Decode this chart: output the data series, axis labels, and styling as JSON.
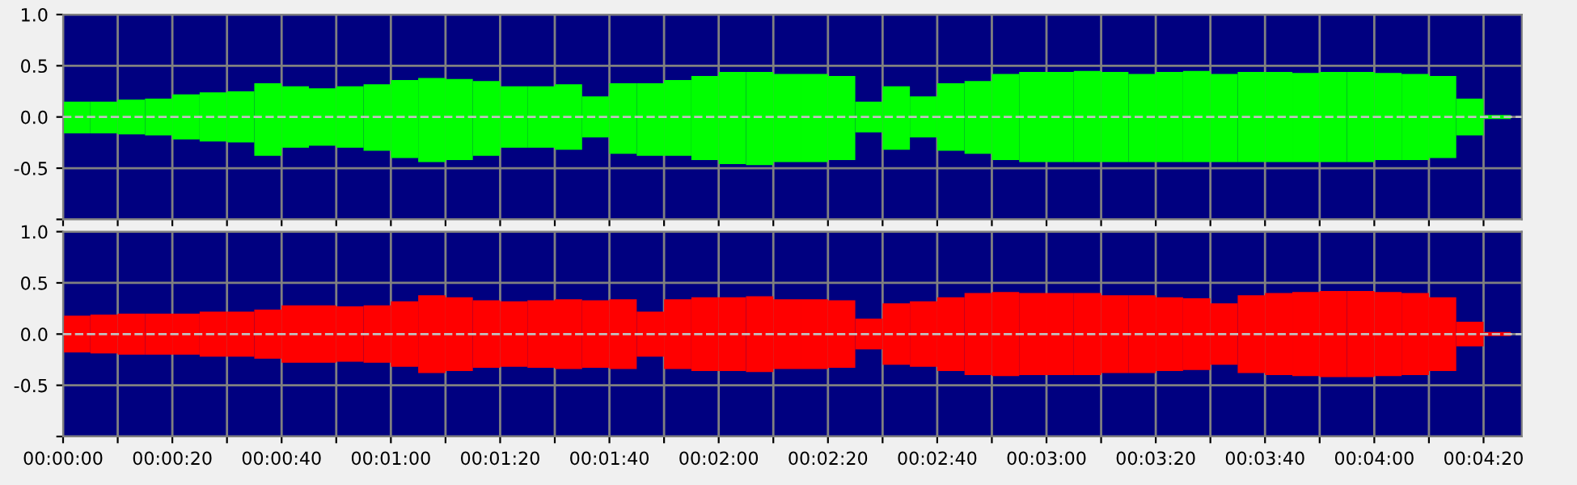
{
  "chart_data": [
    {
      "type": "bar",
      "x": [
        2.5,
        7.5,
        12.5,
        17.5,
        22.5,
        27.5,
        32.5,
        37.5,
        42.5,
        47.5,
        52.5,
        57.5,
        62.5,
        67.5,
        72.5,
        77.5,
        82.5,
        87.5,
        92.5,
        97.5,
        102.5,
        107.5,
        112.5,
        117.5,
        122.5,
        127.5,
        132.5,
        137.5,
        142.5,
        147.5,
        152.5,
        157.5,
        162.5,
        167.5,
        172.5,
        177.5,
        182.5,
        187.5,
        192.5,
        197.5,
        202.5,
        207.5,
        212.5,
        217.5,
        222.5,
        227.5,
        232.5,
        237.5,
        242.5,
        247.5,
        252.5,
        257.5,
        262.5
      ],
      "series": [
        {
          "color": "#00ff00",
          "base": [
            -0.16,
            -0.16,
            -0.17,
            -0.18,
            -0.22,
            -0.24,
            -0.25,
            -0.38,
            -0.3,
            -0.28,
            -0.3,
            -0.33,
            -0.4,
            -0.44,
            -0.42,
            -0.38,
            -0.3,
            -0.3,
            -0.32,
            -0.2,
            -0.36,
            -0.38,
            -0.38,
            -0.42,
            -0.46,
            -0.47,
            -0.44,
            -0.44,
            -0.42,
            -0.15,
            -0.32,
            -0.2,
            -0.33,
            -0.36,
            -0.42,
            -0.44,
            -0.44,
            -0.44,
            -0.44,
            -0.44,
            -0.44,
            -0.44,
            -0.44,
            -0.44,
            -0.44,
            -0.44,
            -0.44,
            -0.44,
            -0.42,
            -0.42,
            -0.4,
            -0.18,
            -0.02
          ],
          "values": [
            0.31,
            0.31,
            0.34,
            0.36,
            0.44,
            0.48,
            0.5,
            0.71,
            0.6,
            0.56,
            0.6,
            0.65,
            0.76,
            0.82,
            0.79,
            0.73,
            0.6,
            0.6,
            0.64,
            0.4,
            0.69,
            0.71,
            0.74,
            0.82,
            0.9,
            0.91,
            0.86,
            0.86,
            0.82,
            0.3,
            0.62,
            0.4,
            0.66,
            0.71,
            0.84,
            0.88,
            0.88,
            0.89,
            0.88,
            0.86,
            0.88,
            0.89,
            0.86,
            0.88,
            0.88,
            0.87,
            0.88,
            0.88,
            0.85,
            0.84,
            0.8,
            0.36,
            0.04
          ]
        }
      ],
      "xlim": [
        0,
        267
      ],
      "xticks": [
        0,
        10,
        20,
        30,
        40,
        50,
        60,
        70,
        80,
        90,
        100,
        110,
        120,
        130,
        140,
        150,
        160,
        170,
        180,
        190,
        200,
        210,
        220,
        230,
        240,
        250,
        260
      ],
      "ylim": [
        -1,
        1
      ],
      "yticks": [
        {
          "value": -1,
          "label": null
        },
        {
          "value": -0.5,
          "label": "-0.5"
        },
        {
          "value": 0,
          "label": "0.0"
        },
        {
          "value": 0.5,
          "label": "0.5"
        },
        {
          "value": 1,
          "label": "1.0"
        }
      ],
      "grid": true,
      "tick_labels": "y",
      "ref_lines": [
        {
          "axis": "y",
          "value": 0,
          "color": "#c0c0c0",
          "line_style": "dashed"
        }
      ]
    },
    {
      "type": "bar",
      "x": [
        2.5,
        7.5,
        12.5,
        17.5,
        22.5,
        27.5,
        32.5,
        37.5,
        42.5,
        47.5,
        52.5,
        57.5,
        62.5,
        67.5,
        72.5,
        77.5,
        82.5,
        87.5,
        92.5,
        97.5,
        102.5,
        107.5,
        112.5,
        117.5,
        122.5,
        127.5,
        132.5,
        137.5,
        142.5,
        147.5,
        152.5,
        157.5,
        162.5,
        167.5,
        172.5,
        177.5,
        182.5,
        187.5,
        192.5,
        197.5,
        202.5,
        207.5,
        212.5,
        217.5,
        222.5,
        227.5,
        232.5,
        237.5,
        242.5,
        247.5,
        252.5,
        257.5,
        262.5
      ],
      "series": [
        {
          "color": "#ff0000",
          "base": [
            -0.18,
            -0.19,
            -0.2,
            -0.2,
            -0.2,
            -0.22,
            -0.22,
            -0.24,
            -0.28,
            -0.28,
            -0.27,
            -0.28,
            -0.32,
            -0.38,
            -0.36,
            -0.33,
            -0.32,
            -0.33,
            -0.34,
            -0.33,
            -0.34,
            -0.22,
            -0.34,
            -0.36,
            -0.36,
            -0.37,
            -0.34,
            -0.34,
            -0.33,
            -0.15,
            -0.3,
            -0.32,
            -0.36,
            -0.4,
            -0.41,
            -0.4,
            -0.4,
            -0.4,
            -0.38,
            -0.38,
            -0.36,
            -0.35,
            -0.3,
            -0.38,
            -0.4,
            -0.41,
            -0.42,
            -0.42,
            -0.41,
            -0.4,
            -0.36,
            -0.12,
            -0.02
          ],
          "values": [
            0.36,
            0.38,
            0.4,
            0.4,
            0.4,
            0.44,
            0.44,
            0.48,
            0.56,
            0.56,
            0.54,
            0.56,
            0.64,
            0.76,
            0.72,
            0.66,
            0.64,
            0.66,
            0.68,
            0.66,
            0.68,
            0.44,
            0.68,
            0.72,
            0.72,
            0.74,
            0.68,
            0.68,
            0.66,
            0.3,
            0.6,
            0.64,
            0.72,
            0.8,
            0.82,
            0.8,
            0.8,
            0.8,
            0.76,
            0.76,
            0.72,
            0.7,
            0.6,
            0.76,
            0.8,
            0.82,
            0.84,
            0.84,
            0.82,
            0.8,
            0.72,
            0.24,
            0.04
          ]
        }
      ],
      "xlim": [
        0,
        267
      ],
      "xticks": [
        {
          "value": 0,
          "label": "00:00:00"
        },
        {
          "value": 10,
          "label": null
        },
        {
          "value": 20,
          "label": "00:00:20"
        },
        {
          "value": 30,
          "label": null
        },
        {
          "value": 40,
          "label": "00:00:40"
        },
        {
          "value": 50,
          "label": null
        },
        {
          "value": 60,
          "label": "00:01:00"
        },
        {
          "value": 70,
          "label": null
        },
        {
          "value": 80,
          "label": "00:01:20"
        },
        {
          "value": 90,
          "label": null
        },
        {
          "value": 100,
          "label": "00:01:40"
        },
        {
          "value": 110,
          "label": null
        },
        {
          "value": 120,
          "label": "00:02:00"
        },
        {
          "value": 130,
          "label": null
        },
        {
          "value": 140,
          "label": "00:02:20"
        },
        {
          "value": 150,
          "label": null
        },
        {
          "value": 160,
          "label": "00:02:40"
        },
        {
          "value": 170,
          "label": null
        },
        {
          "value": 180,
          "label": "00:03:00"
        },
        {
          "value": 190,
          "label": null
        },
        {
          "value": 200,
          "label": "00:03:20"
        },
        {
          "value": 210,
          "label": null
        },
        {
          "value": 220,
          "label": "00:03:40"
        },
        {
          "value": 230,
          "label": null
        },
        {
          "value": 240,
          "label": "00:04:00"
        },
        {
          "value": 250,
          "label": null
        },
        {
          "value": 260,
          "label": "00:04:20"
        }
      ],
      "ylim": [
        -1,
        1
      ],
      "yticks": [
        {
          "value": -1,
          "label": null
        },
        {
          "value": -0.5,
          "label": "-0.5"
        },
        {
          "value": 0,
          "label": "0.0"
        },
        {
          "value": 0.5,
          "label": "0.5"
        },
        {
          "value": 1,
          "label": "1.0"
        }
      ],
      "grid": true,
      "ref_lines": [
        {
          "axis": "y",
          "value": 0,
          "color": "#c0c0c0",
          "line_style": "dashed"
        }
      ]
    }
  ]
}
